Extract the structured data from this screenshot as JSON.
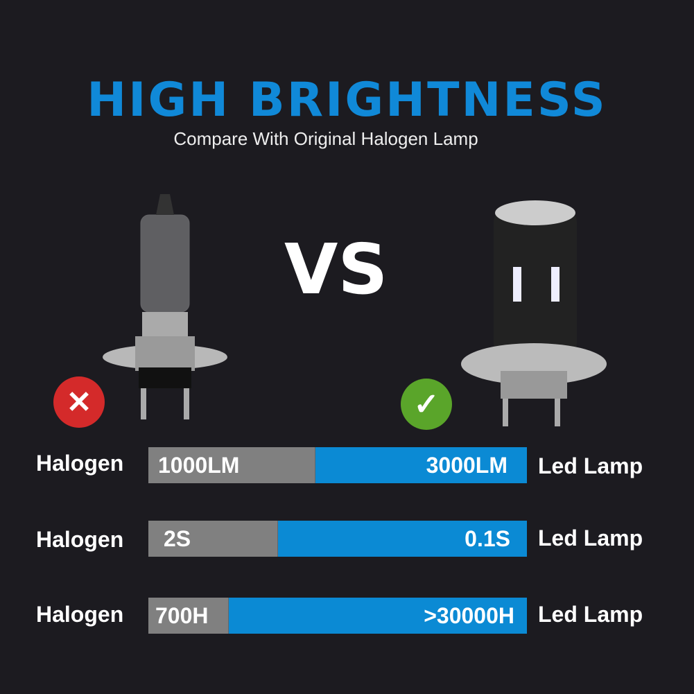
{
  "title": "HIGH BRIGHTNESS",
  "subtitle": "Compare With Original Halogen Lamp",
  "vs": "VS",
  "icons": {
    "halogen": "cross-icon",
    "led": "check-icon"
  },
  "colors": {
    "accent": "#0b8ad4",
    "halogen_bar": "#808080",
    "cross": "#d42a2a",
    "check": "#5aa52a",
    "background": "#1c1b20"
  },
  "rows": [
    {
      "left_label": "Halogen",
      "halogen_value": "1000LM",
      "led_value": "3000LM",
      "right_label": "Led Lamp",
      "halogen_fraction": 0.44
    },
    {
      "left_label": "Halogen",
      "halogen_value": "2S",
      "led_value": "0.1S",
      "right_label": "Led Lamp",
      "halogen_fraction": 0.34
    },
    {
      "left_label": "Halogen",
      "halogen_value": "700H",
      "led_value": ">30000H",
      "right_label": "Led Lamp",
      "halogen_fraction": 0.21
    }
  ]
}
